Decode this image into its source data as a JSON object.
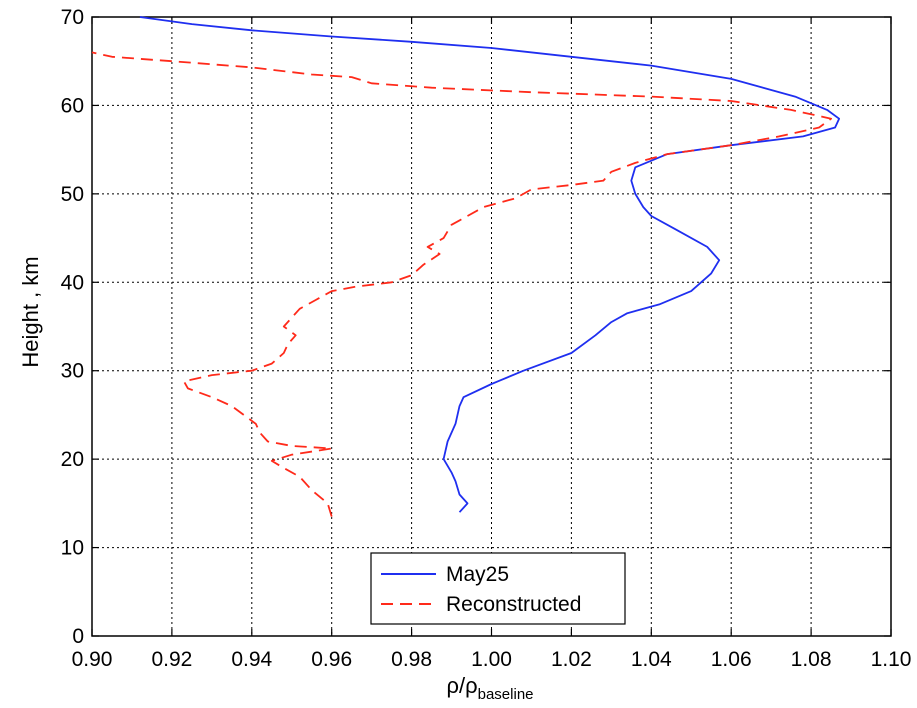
{
  "chart_data": {
    "type": "line",
    "title": "",
    "xlabel": {
      "main": "ρ/ρ",
      "sub": "baseline"
    },
    "ylabel": "Height , km",
    "xlim": [
      0.9,
      1.1
    ],
    "ylim": [
      0,
      70
    ],
    "x_ticks": [
      "0.90",
      "0.92",
      "0.94",
      "0.96",
      "0.98",
      "1.00",
      "1.02",
      "1.04",
      "1.06",
      "1.08",
      "1.10"
    ],
    "y_ticks": [
      "0",
      "10",
      "20",
      "30",
      "40",
      "50",
      "60",
      "70"
    ],
    "grid": true,
    "legend": "bottom-center",
    "series": [
      {
        "name": "May25",
        "color": "#1f2ff0",
        "style": "solid",
        "points": [
          [
            0.992,
            14.0
          ],
          [
            0.994,
            15.0
          ],
          [
            0.992,
            16.0
          ],
          [
            0.991,
            17.5
          ],
          [
            0.99,
            18.5
          ],
          [
            0.988,
            20.0
          ],
          [
            0.989,
            22.0
          ],
          [
            0.991,
            24.0
          ],
          [
            0.992,
            26.0
          ],
          [
            0.993,
            27.0
          ],
          [
            1.0,
            28.5
          ],
          [
            1.008,
            30.0
          ],
          [
            1.02,
            32.0
          ],
          [
            1.026,
            34.0
          ],
          [
            1.03,
            35.5
          ],
          [
            1.034,
            36.5
          ],
          [
            1.042,
            37.5
          ],
          [
            1.05,
            39.0
          ],
          [
            1.055,
            41.0
          ],
          [
            1.057,
            42.5
          ],
          [
            1.054,
            44.0
          ],
          [
            1.046,
            46.0
          ],
          [
            1.04,
            47.5
          ],
          [
            1.038,
            48.5
          ],
          [
            1.036,
            50.0
          ],
          [
            1.035,
            51.5
          ],
          [
            1.036,
            53.0
          ],
          [
            1.044,
            54.5
          ],
          [
            1.06,
            55.5
          ],
          [
            1.078,
            56.5
          ],
          [
            1.086,
            57.5
          ],
          [
            1.087,
            58.5
          ],
          [
            1.084,
            59.5
          ],
          [
            1.076,
            61.0
          ],
          [
            1.06,
            63.0
          ],
          [
            1.04,
            64.5
          ],
          [
            1.02,
            65.5
          ],
          [
            1.0,
            66.5
          ],
          [
            0.98,
            67.2
          ],
          [
            0.96,
            67.8
          ],
          [
            0.94,
            68.5
          ],
          [
            0.925,
            69.2
          ],
          [
            0.912,
            70.0
          ]
        ]
      },
      {
        "name": "Reconstructed",
        "color": "#ff2a1a",
        "style": "dashed",
        "points": [
          [
            0.96,
            13.5
          ],
          [
            0.959,
            15.0
          ],
          [
            0.955,
            16.5
          ],
          [
            0.952,
            18.0
          ],
          [
            0.948,
            19.0
          ],
          [
            0.945,
            19.8
          ],
          [
            0.95,
            20.5
          ],
          [
            0.96,
            21.2
          ],
          [
            0.95,
            21.5
          ],
          [
            0.944,
            22.0
          ],
          [
            0.942,
            23.0
          ],
          [
            0.941,
            24.0
          ],
          [
            0.938,
            25.0
          ],
          [
            0.935,
            26.0
          ],
          [
            0.93,
            27.0
          ],
          [
            0.924,
            28.0
          ],
          [
            0.923,
            28.8
          ],
          [
            0.93,
            29.5
          ],
          [
            0.94,
            30.0
          ],
          [
            0.945,
            30.8
          ],
          [
            0.948,
            32.0
          ],
          [
            0.949,
            33.0
          ],
          [
            0.951,
            34.0
          ],
          [
            0.948,
            35.0
          ],
          [
            0.95,
            36.0
          ],
          [
            0.952,
            37.0
          ],
          [
            0.956,
            38.0
          ],
          [
            0.96,
            39.0
          ],
          [
            0.966,
            39.5
          ],
          [
            0.975,
            40.0
          ],
          [
            0.98,
            40.8
          ],
          [
            0.983,
            42.0
          ],
          [
            0.987,
            43.2
          ],
          [
            0.984,
            44.0
          ],
          [
            0.988,
            45.0
          ],
          [
            0.99,
            46.5
          ],
          [
            0.992,
            47.0
          ],
          [
            0.998,
            48.5
          ],
          [
            1.006,
            49.5
          ],
          [
            1.01,
            50.5
          ],
          [
            1.02,
            51.0
          ],
          [
            1.028,
            51.5
          ],
          [
            1.03,
            52.5
          ],
          [
            1.036,
            53.5
          ],
          [
            1.044,
            54.5
          ],
          [
            1.06,
            55.5
          ],
          [
            1.072,
            56.5
          ],
          [
            1.082,
            57.5
          ],
          [
            1.085,
            58.5
          ],
          [
            1.075,
            59.5
          ],
          [
            1.06,
            60.5
          ],
          [
            1.04,
            61.0
          ],
          [
            1.01,
            61.5
          ],
          [
            0.985,
            62.0
          ],
          [
            0.97,
            62.5
          ],
          [
            0.965,
            63.2
          ],
          [
            0.955,
            63.5
          ],
          [
            0.94,
            64.3
          ],
          [
            0.92,
            65.0
          ],
          [
            0.905,
            65.5
          ],
          [
            0.9,
            66.0
          ]
        ]
      }
    ]
  }
}
